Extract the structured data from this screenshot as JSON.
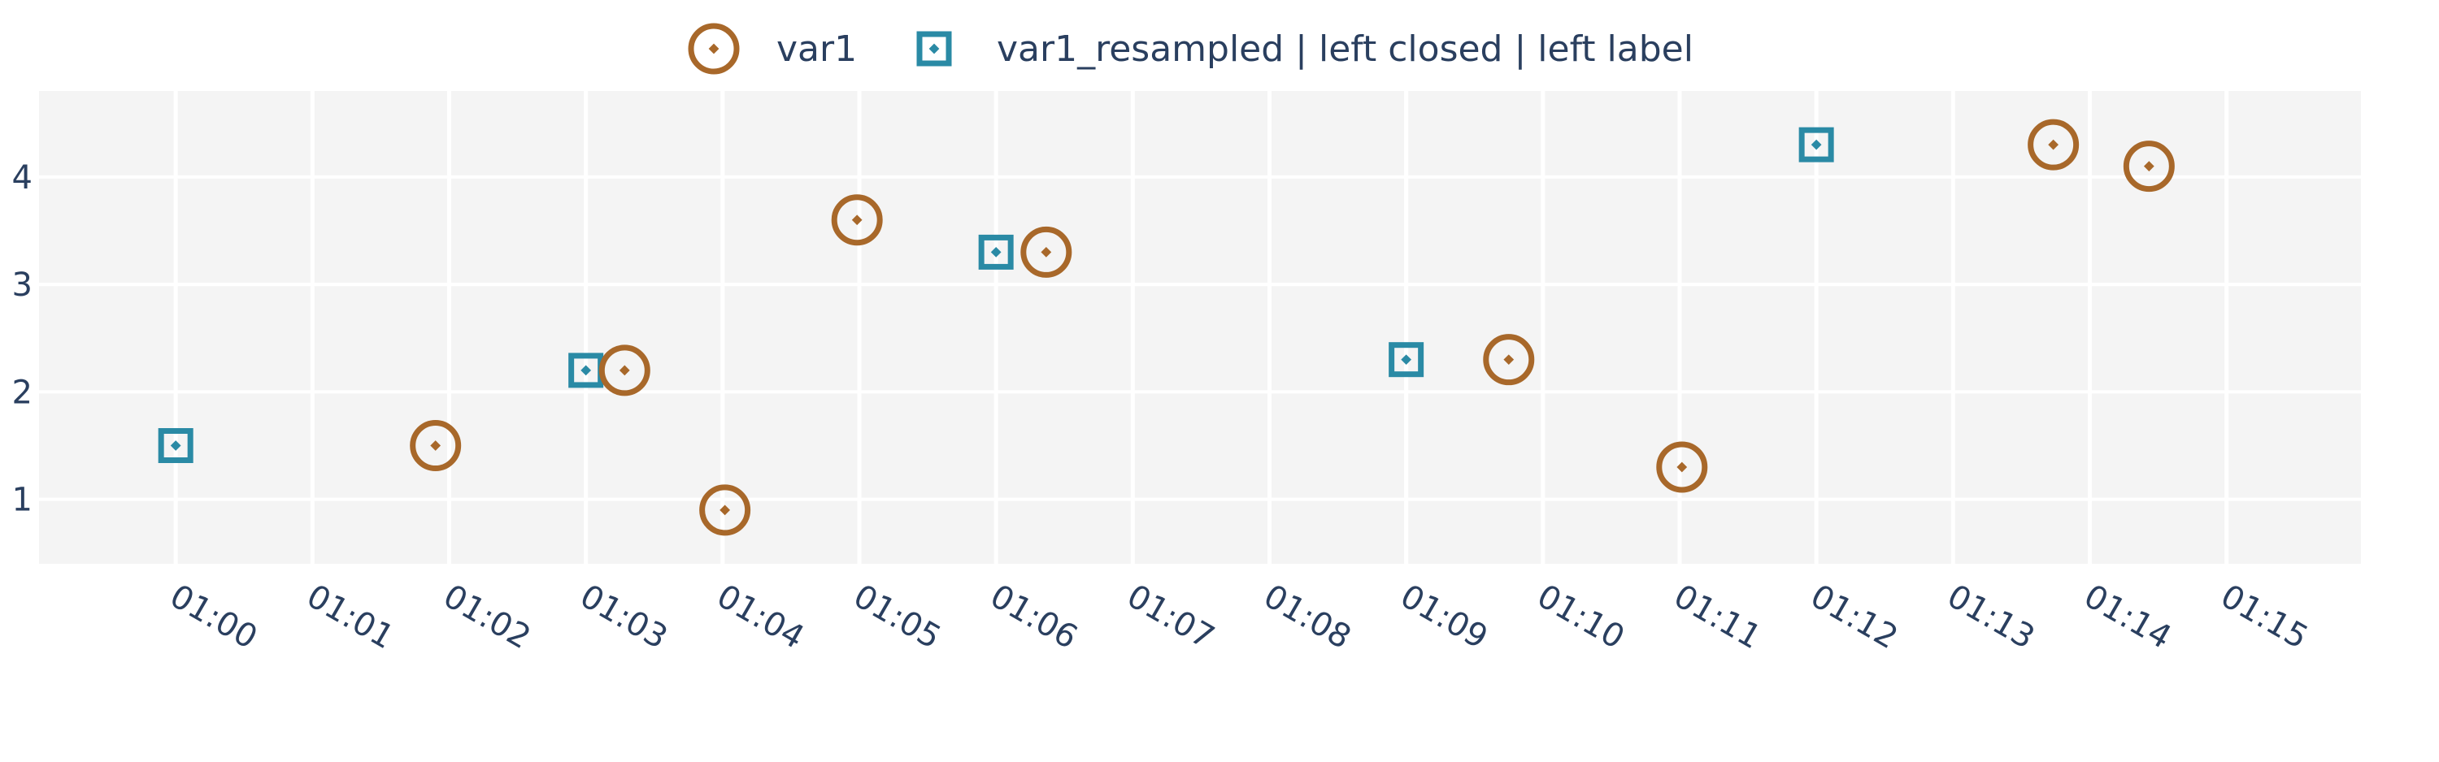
{
  "chart_data": {
    "type": "scatter",
    "title": "",
    "xlabel": "",
    "ylabel": "",
    "x_axis_type": "time",
    "x_ticks": [
      "01:00",
      "01:01",
      "01:02",
      "01:03",
      "01:04",
      "01:05",
      "01:06",
      "01:07",
      "01:08",
      "01:09",
      "01:10",
      "01:11",
      "01:12",
      "01:13",
      "01:14",
      "01:15"
    ],
    "x_range": [
      "00:59:00",
      "01:15:59"
    ],
    "y_ticks": [
      1,
      2,
      3,
      4
    ],
    "ylim": [
      0.4,
      4.8
    ],
    "grid": true,
    "legend_position": "top-center",
    "legend_orientation": "horizontal",
    "series": [
      {
        "name": "var1",
        "marker": "circle-dot",
        "color": "#a8682a",
        "x": [
          "01:01:54",
          "01:03:17",
          "01:04:01",
          "01:04:59",
          "01:06:22",
          "01:09:45",
          "01:11:01",
          "01:13:44",
          "01:14:26"
        ],
        "y": [
          1.5,
          2.2,
          0.9,
          3.6,
          3.3,
          2.3,
          1.3,
          4.3,
          4.1
        ]
      },
      {
        "name": "var1_resampled | left closed | left label",
        "marker": "square-dot",
        "color": "#2a8aa5",
        "x": [
          "01:00:00",
          "01:03:00",
          "01:06:00",
          "01:09:00",
          "01:12:00"
        ],
        "y": [
          1.5,
          2.2,
          3.3,
          2.3,
          4.3
        ]
      }
    ],
    "colors": {
      "plot_bg": "#f4f4f4",
      "grid": "#ffffff",
      "text": "#2a3f5f"
    }
  }
}
